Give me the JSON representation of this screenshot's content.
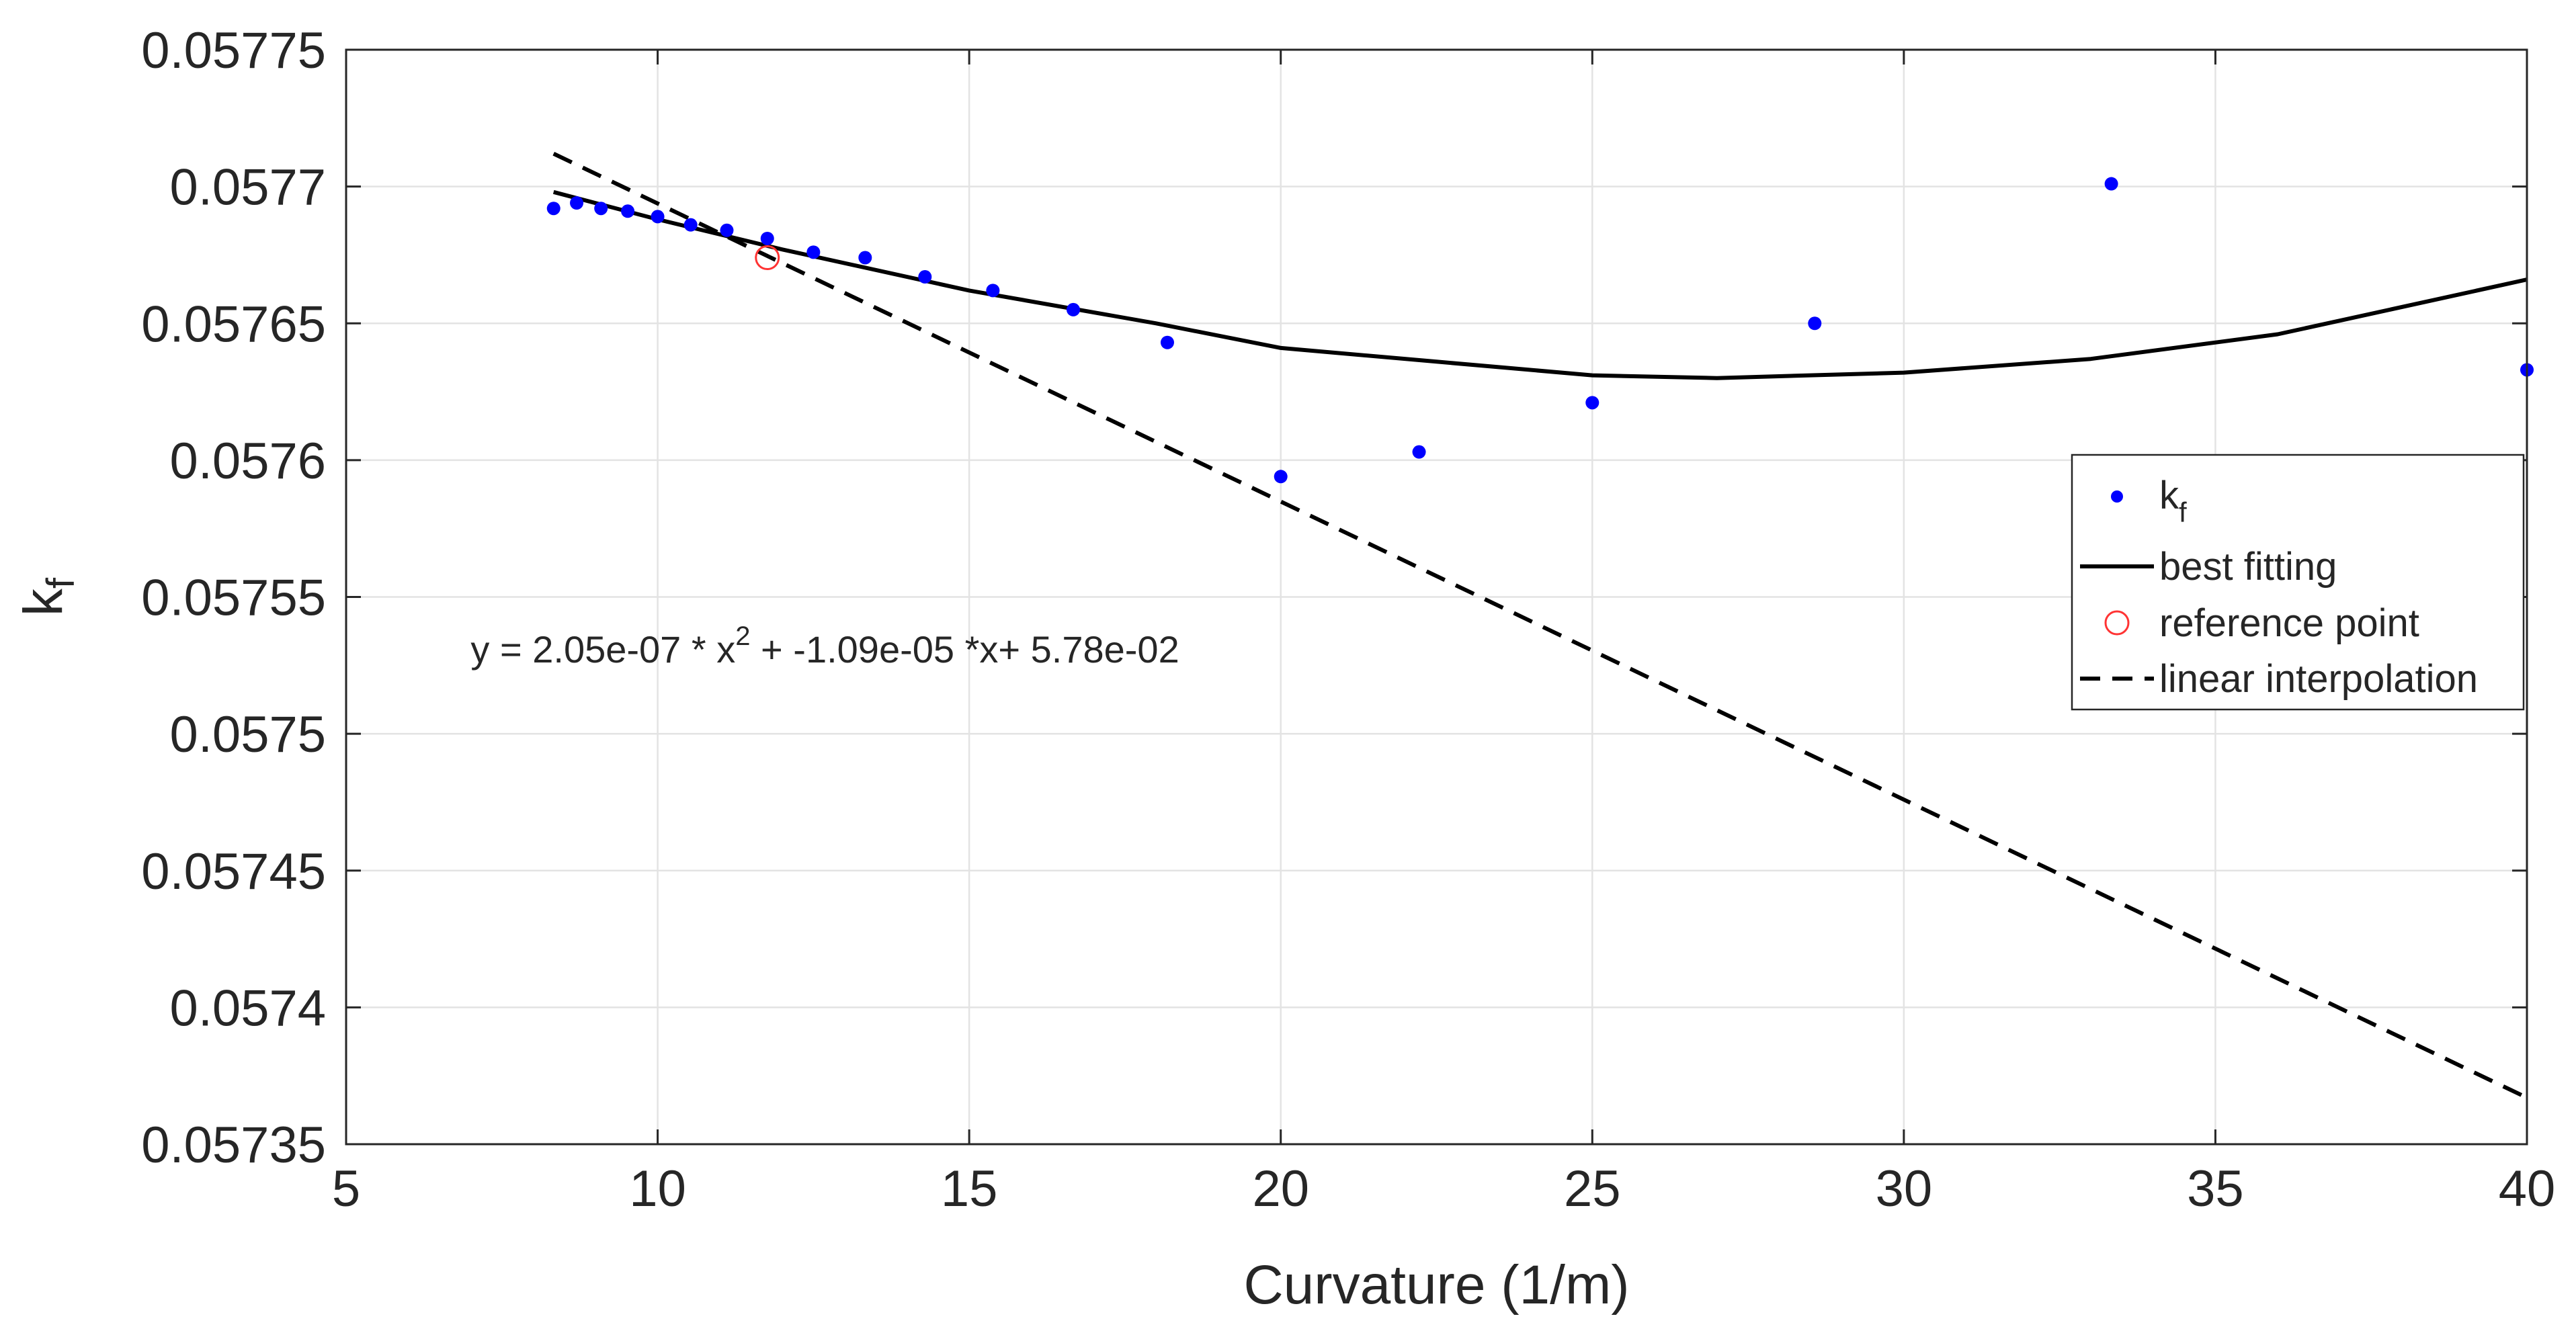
{
  "chart_data": {
    "type": "scatter",
    "xlabel": "Curvature (1/m)",
    "ylabel": {
      "main": "k",
      "sub": "f"
    },
    "xlim": [
      5,
      40
    ],
    "ylim": [
      0.05735,
      0.05775
    ],
    "xticks": [
      5,
      10,
      15,
      20,
      25,
      30,
      35,
      40
    ],
    "xtick_labels": [
      "5",
      "10",
      "15",
      "20",
      "25",
      "30",
      "35",
      "40"
    ],
    "yticks": [
      0.05735,
      0.0574,
      0.05745,
      0.0575,
      0.05755,
      0.0576,
      0.05765,
      0.0577,
      0.05775
    ],
    "ytick_labels": [
      "0.05735",
      "0.0574",
      "0.05745",
      "0.0575",
      "0.05755",
      "0.0576",
      "0.05765",
      "0.0577",
      "0.05775"
    ],
    "grid": true,
    "legend_position": "right",
    "series": [
      {
        "name": "k_f",
        "type": "scatter",
        "color": "#0000ff",
        "points": [
          [
            8.33,
            0.057692
          ],
          [
            8.7,
            0.057694
          ],
          [
            9.09,
            0.057692
          ],
          [
            9.52,
            0.057691
          ],
          [
            10.0,
            0.057689
          ],
          [
            10.53,
            0.057686
          ],
          [
            11.11,
            0.057684
          ],
          [
            11.76,
            0.057681
          ],
          [
            12.5,
            0.057676
          ],
          [
            13.33,
            0.057674
          ],
          [
            14.29,
            0.057667
          ],
          [
            15.38,
            0.057662
          ],
          [
            16.67,
            0.057655
          ],
          [
            18.18,
            0.057643
          ],
          [
            20.0,
            0.057594
          ],
          [
            22.22,
            0.057603
          ],
          [
            25.0,
            0.057621
          ],
          [
            28.57,
            0.05765
          ],
          [
            33.33,
            0.057701
          ],
          [
            40.0,
            0.057633
          ]
        ]
      },
      {
        "name": "best fitting",
        "type": "line",
        "color": "#000000",
        "style": "solid",
        "x_range": [
          8.33,
          40
        ],
        "y_samples": [
          [
            8.33,
            0.057698
          ],
          [
            10,
            0.057688
          ],
          [
            12,
            0.057677
          ],
          [
            15,
            0.057662
          ],
          [
            18,
            0.05765
          ],
          [
            20,
            0.057641
          ],
          [
            22.5,
            0.057636
          ],
          [
            25,
            0.057631
          ],
          [
            27,
            0.05763
          ],
          [
            30,
            0.057632
          ],
          [
            33,
            0.057637
          ],
          [
            36,
            0.057646
          ],
          [
            40,
            0.057666
          ]
        ]
      },
      {
        "name": "reference point",
        "type": "marker",
        "color": "#ff3333",
        "points": [
          [
            11.76,
            0.057674
          ]
        ]
      },
      {
        "name": "linear interpolation",
        "type": "line",
        "color": "#000000",
        "style": "dashed",
        "points": [
          [
            8.33,
            0.057712
          ],
          [
            40.0,
            0.057367
          ]
        ]
      }
    ],
    "legend": [
      {
        "key": "kf",
        "label_main": "k",
        "label_sub": "f"
      },
      {
        "key": "best",
        "label": "best fitting"
      },
      {
        "key": "ref",
        "label": "reference point"
      },
      {
        "key": "lin",
        "label": "linear interpolation"
      }
    ],
    "annotation": {
      "prefix": "y = 2.05e-07 * x",
      "exponent": "2",
      "suffix": " + -1.09e-05 *x+ 5.78e-02",
      "anchor": [
        7.0,
        0.057526
      ]
    }
  }
}
